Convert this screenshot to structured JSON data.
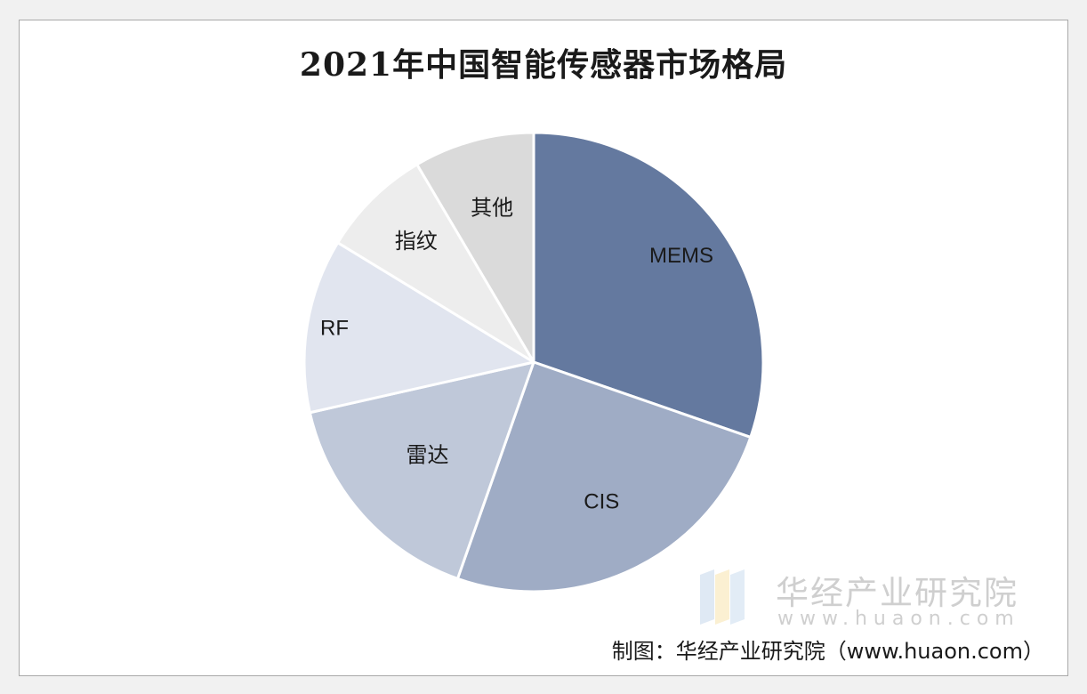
{
  "chart_data": {
    "type": "pie",
    "title": "2021年中国智能传感器市场格局",
    "categories": [
      "MEMS",
      "CIS",
      "雷达",
      "RF",
      "指纹",
      "其他"
    ],
    "values": [
      30.7,
      25.4,
      16.3,
      12.4,
      7.9,
      8.6
    ],
    "colors": [
      "#64799f",
      "#9facc5",
      "#bfc8d9",
      "#e1e5ef",
      "#ededed",
      "#dadada"
    ],
    "start_angle_deg": 0,
    "direction": "clockwise"
  },
  "watermark": {
    "name": "华经产业研究院",
    "url": "www.huaon.com"
  },
  "source": "制图：华经产业研究院（www.huaon.com）"
}
